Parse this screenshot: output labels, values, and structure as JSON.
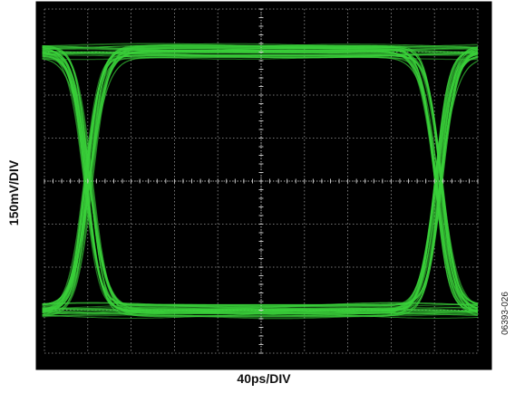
{
  "chart_data": {
    "type": "eye-diagram",
    "title": "",
    "xlabel": "40ps/DIV",
    "ylabel": "150mV/DIV",
    "x_divisions": 10,
    "y_divisions": 8,
    "grid": true,
    "trace_color": "#3ad13a",
    "background_color": "#000000",
    "frame_color": "#ffffff",
    "eye": {
      "crossings_div": [
        1.0,
        9.1
      ],
      "high_level_div": 1.0,
      "low_level_div": 7.0,
      "center_level_div": 4.0
    }
  },
  "figure_id": "06393-026"
}
